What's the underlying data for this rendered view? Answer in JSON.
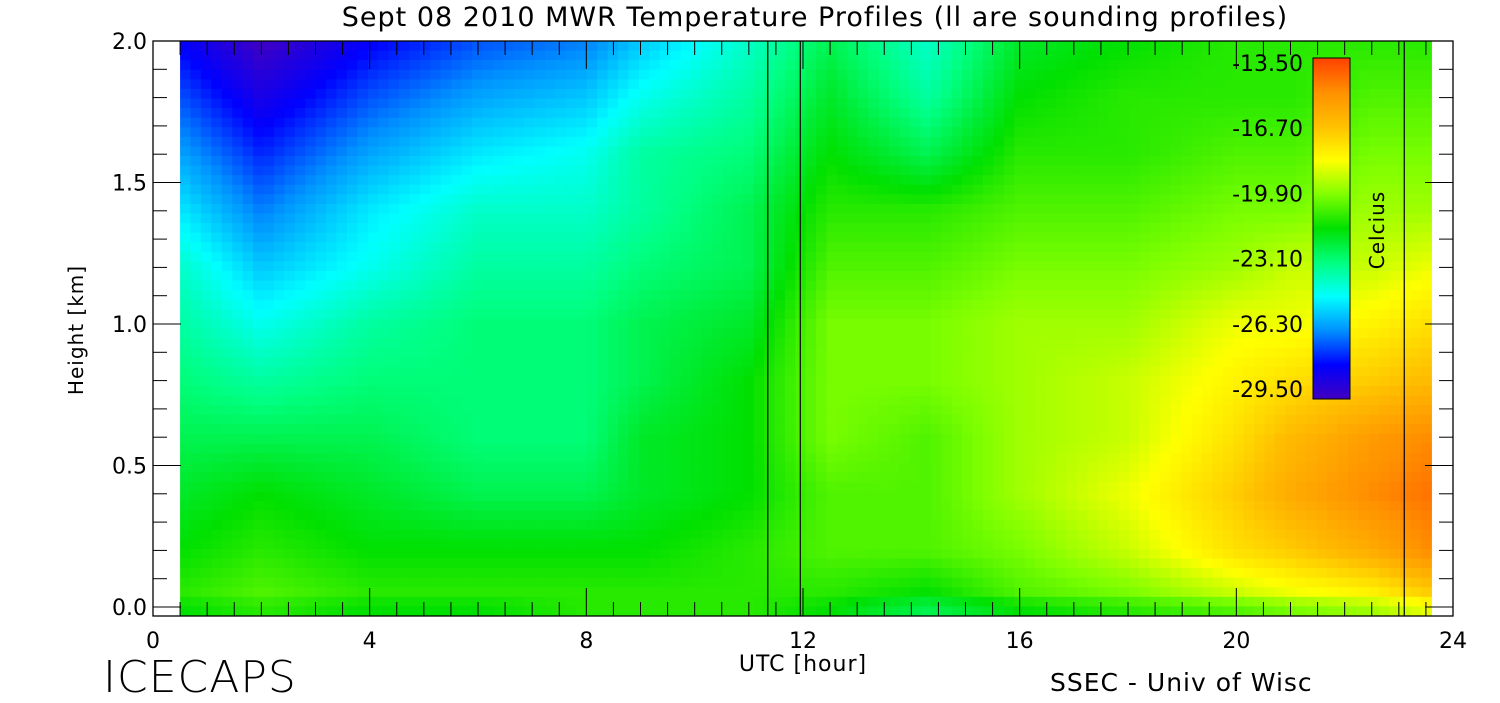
{
  "chart_data": {
    "type": "heatmap",
    "title": "Sept 08 2010 MWR Temperature Profiles (ll are sounding profiles)",
    "xlabel": "UTC [hour]",
    "ylabel": "Height [km]",
    "xlim": [
      0,
      24
    ],
    "ylim": [
      0,
      2.0
    ],
    "x_ticks": [
      "0",
      "4",
      "8",
      "12",
      "16",
      "20",
      "24"
    ],
    "y_ticks": [
      "0.0",
      "0.5",
      "1.0",
      "1.5",
      "2.0"
    ],
    "colorbar": {
      "label": "Celcius",
      "ticks": [
        "-13.50",
        "-16.70",
        "-19.90",
        "-23.10",
        "-26.30",
        "-29.50"
      ],
      "range": [
        -29.5,
        -13.5
      ],
      "colors": [
        "#4000c0",
        "#0000ff",
        "#0090ff",
        "#00ffff",
        "#00ff80",
        "#00e000",
        "#80ff00",
        "#ffff00",
        "#ffc000",
        "#ff9000",
        "#ff4000"
      ]
    },
    "data_coverage_hours": [
      0.5,
      23.6
    ],
    "sounding_times_hours": [
      11.35,
      11.95,
      23.1
    ],
    "heights_km": [
      0.0,
      0.05,
      0.2,
      0.4,
      0.6,
      0.8,
      1.0,
      1.2,
      1.4,
      1.6,
      1.8,
      2.0
    ],
    "times_hours": [
      0.5,
      2.0,
      4.0,
      6.0,
      8.0,
      9.0,
      11.0,
      12.5,
      14.3,
      16.0,
      18.0,
      20.0,
      21.0,
      22.5,
      23.6
    ],
    "temperature_grid": [
      [
        -21.5,
        -21.0,
        -21.5,
        -21.5,
        -21.0,
        -21.0,
        -21.0,
        -21.5,
        -22.5,
        -21.5,
        -21.0,
        -20.5,
        -20.0,
        -19.5,
        -18.5
      ],
      [
        -21.0,
        -20.5,
        -21.0,
        -21.0,
        -21.0,
        -21.0,
        -21.0,
        -21.0,
        -21.5,
        -20.5,
        -20.0,
        -19.0,
        -18.5,
        -18.0,
        -17.0
      ],
      [
        -21.5,
        -21.0,
        -21.5,
        -21.5,
        -21.5,
        -21.5,
        -21.0,
        -20.5,
        -20.5,
        -20.0,
        -19.0,
        -17.5,
        -17.0,
        -16.0,
        -15.0
      ],
      [
        -22.0,
        -21.5,
        -22.0,
        -22.5,
        -22.5,
        -22.0,
        -21.5,
        -20.5,
        -20.5,
        -19.5,
        -18.5,
        -17.0,
        -16.0,
        -15.0,
        -14.5
      ],
      [
        -22.5,
        -22.5,
        -22.5,
        -23.0,
        -23.0,
        -22.0,
        -21.5,
        -20.0,
        -20.5,
        -19.5,
        -19.0,
        -17.5,
        -16.5,
        -15.5,
        -15.0
      ],
      [
        -23.0,
        -23.5,
        -23.0,
        -23.0,
        -23.0,
        -22.5,
        -21.5,
        -20.0,
        -20.0,
        -19.5,
        -19.0,
        -18.0,
        -17.5,
        -17.0,
        -16.5
      ],
      [
        -23.5,
        -24.5,
        -23.5,
        -23.0,
        -23.0,
        -22.5,
        -22.0,
        -20.0,
        -20.0,
        -19.5,
        -19.5,
        -18.5,
        -18.5,
        -18.0,
        -17.5
      ],
      [
        -24.0,
        -25.5,
        -24.5,
        -23.5,
        -23.5,
        -23.0,
        -22.5,
        -20.5,
        -20.5,
        -20.0,
        -20.0,
        -19.5,
        -19.0,
        -19.0,
        -18.5
      ],
      [
        -25.0,
        -26.5,
        -25.0,
        -24.0,
        -24.0,
        -23.5,
        -22.5,
        -21.0,
        -21.0,
        -20.5,
        -20.5,
        -20.0,
        -20.0,
        -19.5,
        -19.5
      ],
      [
        -26.0,
        -27.5,
        -26.0,
        -25.0,
        -24.5,
        -23.5,
        -23.0,
        -21.5,
        -22.5,
        -21.0,
        -21.0,
        -20.5,
        -20.5,
        -20.0,
        -20.0
      ],
      [
        -27.0,
        -28.5,
        -27.0,
        -26.0,
        -25.5,
        -24.5,
        -23.5,
        -22.0,
        -23.5,
        -21.5,
        -21.0,
        -21.0,
        -21.0,
        -20.5,
        -20.5
      ],
      [
        -28.0,
        -29.5,
        -28.0,
        -27.0,
        -26.5,
        -25.5,
        -24.0,
        -22.5,
        -24.0,
        -22.0,
        -21.5,
        -21.0,
        -21.0,
        -21.0,
        -21.0
      ]
    ]
  },
  "footer": {
    "brand": "ICECAPS",
    "credit": "SSEC - Univ of Wisc"
  }
}
